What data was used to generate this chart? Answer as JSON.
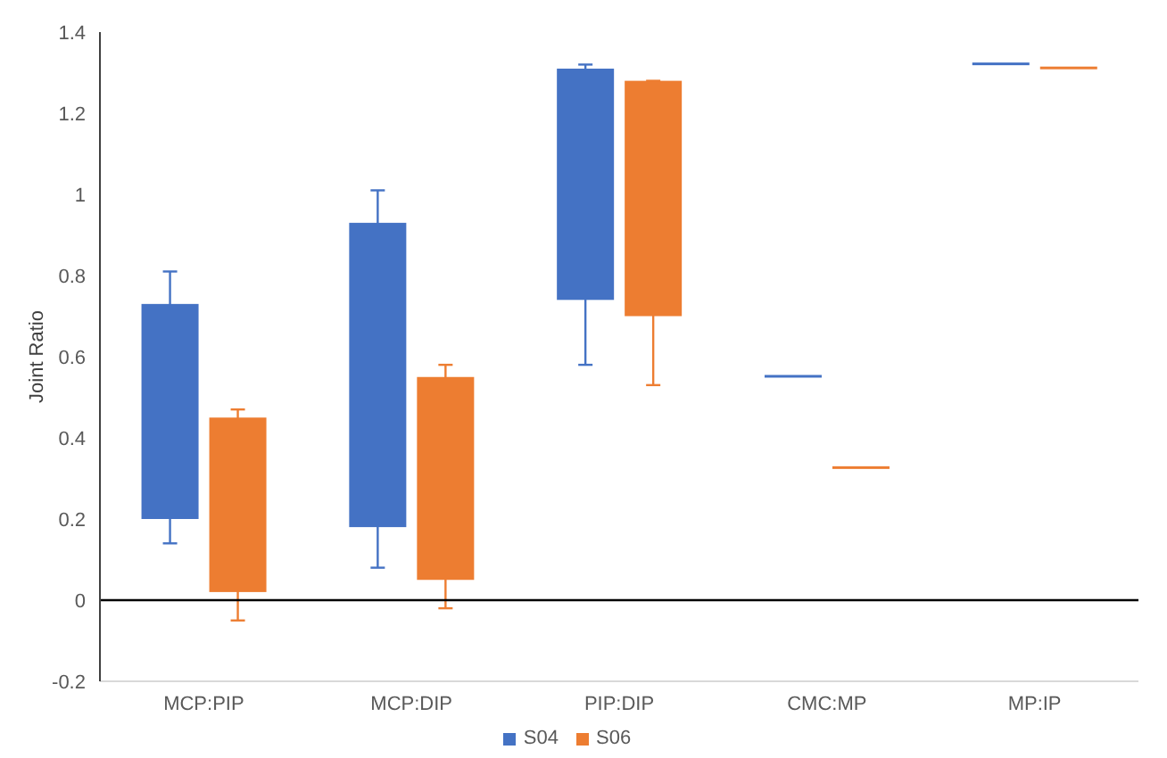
{
  "chart_data": {
    "type": "bar",
    "ylabel": "Joint Ratio",
    "categories": [
      "MCP:PIP",
      "MCP:DIP",
      "PIP:DIP",
      "CMC:MP",
      "MP:IP"
    ],
    "series": [
      {
        "name": "S04",
        "color": "#4472c4",
        "base": [
          0.2,
          0.18,
          0.74,
          0.55,
          1.32
        ],
        "values": [
          0.53,
          0.75,
          0.57,
          0.005,
          0.005
        ],
        "errors": [
          [
            0.14,
            0.81
          ],
          [
            0.08,
            1.01
          ],
          [
            0.58,
            1.32
          ],
          null,
          null
        ]
      },
      {
        "name": "S06",
        "color": "#ed7d31",
        "base": [
          0.02,
          0.05,
          0.7,
          0.325,
          1.31
        ],
        "values": [
          0.43,
          0.5,
          0.58,
          0.005,
          0.005
        ],
        "errors": [
          [
            -0.05,
            0.47
          ],
          [
            -0.02,
            0.58
          ],
          [
            0.53,
            1.28
          ],
          null,
          null
        ]
      }
    ],
    "ylim": [
      -0.2,
      1.4
    ],
    "yticks": [
      -0.2,
      0,
      0.2,
      0.4,
      0.6,
      0.8,
      1,
      1.2,
      1.4
    ],
    "ref_lines": [
      {
        "axis": "y",
        "value": 0,
        "color": "#000000"
      }
    ],
    "legend": "bottom"
  }
}
